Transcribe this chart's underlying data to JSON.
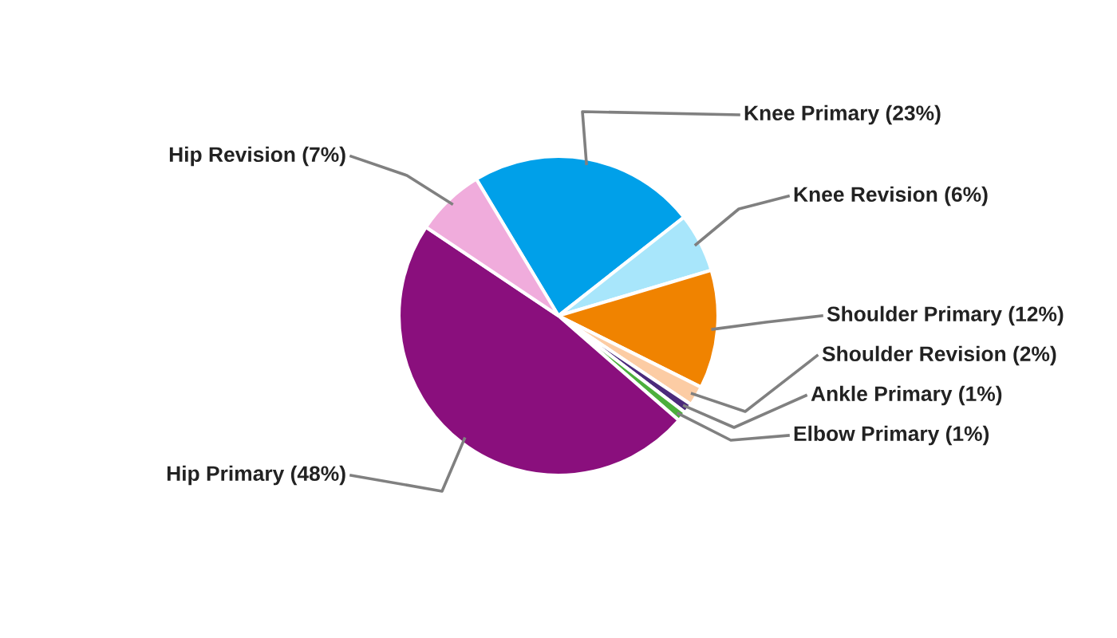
{
  "chart_data": {
    "type": "pie",
    "categories": [
      "Knee Primary (23%)",
      "Knee Revision (6%)",
      "Shoulder Primary (12%)",
      "Shoulder Revision (2%)",
      "Ankle Primary (1%)",
      "Elbow Primary (1%)",
      "Hip Primary (48%)",
      "Hip Revision (7%)"
    ],
    "values": [
      23,
      6,
      12,
      2,
      1,
      1,
      48,
      7
    ],
    "colors": [
      "#00a0e9",
      "#a8e6fb",
      "#f08300",
      "#fcccA4",
      "#4b2a7b",
      "#4caf3c",
      "#8a0f7d",
      "#f0acdc"
    ],
    "legend": false
  }
}
